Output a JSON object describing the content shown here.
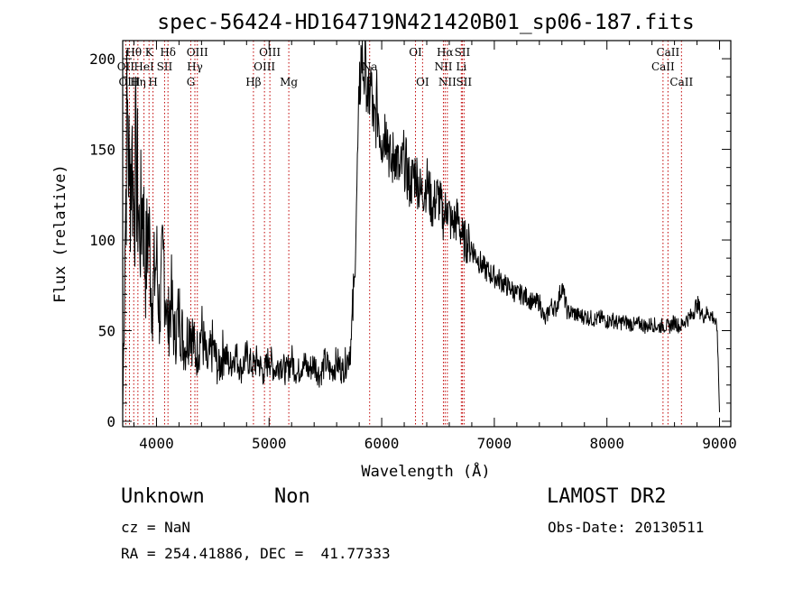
{
  "chart_data": {
    "type": "line",
    "title": "spec-56424-HD164719N421420B01_sp06-187.fits",
    "xlabel": "Wavelength (Å)",
    "ylabel": "Flux (relative)",
    "xlim": [
      3700,
      9100
    ],
    "ylim": [
      -3,
      210
    ],
    "x_ticks": [
      4000,
      5000,
      6000,
      7000,
      8000,
      9000
    ],
    "y_ticks": [
      0,
      50,
      100,
      150,
      200
    ],
    "grid": false,
    "series": [
      {
        "color": "#000000",
        "points": [
          [
            3700,
            5
          ],
          [
            3720,
            95
          ],
          [
            3740,
            175
          ],
          [
            3760,
            130
          ],
          [
            3780,
            150
          ],
          [
            3800,
            120
          ],
          [
            3820,
            145
          ],
          [
            3850,
            100
          ],
          [
            3880,
            125
          ],
          [
            3900,
            80
          ],
          [
            3930,
            110
          ],
          [
            3960,
            65
          ],
          [
            4000,
            90
          ],
          [
            4030,
            55
          ],
          [
            4060,
            95
          ],
          [
            4100,
            50
          ],
          [
            4130,
            70
          ],
          [
            4160,
            45
          ],
          [
            4200,
            60
          ],
          [
            4250,
            40
          ],
          [
            4300,
            55
          ],
          [
            4350,
            35
          ],
          [
            4400,
            50
          ],
          [
            4450,
            30
          ],
          [
            4500,
            42
          ],
          [
            4550,
            28
          ],
          [
            4600,
            40
          ],
          [
            4650,
            30
          ],
          [
            4700,
            38
          ],
          [
            4750,
            28
          ],
          [
            4800,
            36
          ],
          [
            4850,
            30
          ],
          [
            4900,
            34
          ],
          [
            4950,
            26
          ],
          [
            5000,
            35
          ],
          [
            5050,
            28
          ],
          [
            5100,
            33
          ],
          [
            5150,
            27
          ],
          [
            5200,
            34
          ],
          [
            5250,
            26
          ],
          [
            5300,
            33
          ],
          [
            5350,
            28
          ],
          [
            5400,
            32
          ],
          [
            5450,
            25
          ],
          [
            5500,
            33
          ],
          [
            5550,
            27
          ],
          [
            5600,
            33
          ],
          [
            5650,
            28
          ],
          [
            5700,
            35
          ],
          [
            5730,
            45
          ],
          [
            5760,
            80
          ],
          [
            5780,
            130
          ],
          [
            5800,
            175
          ],
          [
            5820,
            205
          ],
          [
            5840,
            190
          ],
          [
            5860,
            200
          ],
          [
            5880,
            170
          ],
          [
            5900,
            190
          ],
          [
            5930,
            160
          ],
          [
            5960,
            175
          ],
          [
            6000,
            155
          ],
          [
            6040,
            165
          ],
          [
            6080,
            140
          ],
          [
            6120,
            150
          ],
          [
            6160,
            135
          ],
          [
            6200,
            145
          ],
          [
            6250,
            130
          ],
          [
            6300,
            138
          ],
          [
            6350,
            125
          ],
          [
            6400,
            132
          ],
          [
            6450,
            118
          ],
          [
            6500,
            125
          ],
          [
            6550,
            112
          ],
          [
            6580,
            120
          ],
          [
            6620,
            108
          ],
          [
            6680,
            112
          ],
          [
            6720,
            100
          ],
          [
            6780,
            98
          ],
          [
            6850,
            90
          ],
          [
            6900,
            85
          ],
          [
            6950,
            82
          ],
          [
            7000,
            80
          ],
          [
            7050,
            78
          ],
          [
            7100,
            75
          ],
          [
            7150,
            73
          ],
          [
            7200,
            70
          ],
          [
            7250,
            70
          ],
          [
            7300,
            68
          ],
          [
            7350,
            65
          ],
          [
            7400,
            66
          ],
          [
            7450,
            55
          ],
          [
            7500,
            64
          ],
          [
            7550,
            62
          ],
          [
            7600,
            75
          ],
          [
            7650,
            60
          ],
          [
            7700,
            60
          ],
          [
            7750,
            58
          ],
          [
            7800,
            58
          ],
          [
            7850,
            57
          ],
          [
            7900,
            56
          ],
          [
            7950,
            57
          ],
          [
            8000,
            55
          ],
          [
            8050,
            56
          ],
          [
            8100,
            54
          ],
          [
            8150,
            55
          ],
          [
            8200,
            54
          ],
          [
            8250,
            53
          ],
          [
            8300,
            54
          ],
          [
            8350,
            52
          ],
          [
            8400,
            54
          ],
          [
            8450,
            52
          ],
          [
            8500,
            53
          ],
          [
            8550,
            52
          ],
          [
            8600,
            55
          ],
          [
            8650,
            52
          ],
          [
            8700,
            56
          ],
          [
            8750,
            58
          ],
          [
            8800,
            65
          ],
          [
            8850,
            58
          ],
          [
            8900,
            60
          ],
          [
            8950,
            57
          ],
          [
            8980,
            50
          ],
          [
            9000,
            5
          ]
        ]
      }
    ],
    "line_color": "#c00000",
    "spectral_lines": [
      {
        "label": "OII",
        "x": 3727,
        "row": 1
      },
      {
        "label": "Hθ",
        "x": 3798,
        "row": 0
      },
      {
        "label": "OIII",
        "x": 3760,
        "row": 2
      },
      {
        "label": "Hη",
        "x": 3835,
        "row": 2
      },
      {
        "label": "HeI",
        "x": 3889,
        "row": 1
      },
      {
        "label": "K",
        "x": 3934,
        "row": 0
      },
      {
        "label": "H",
        "x": 3969,
        "row": 2
      },
      {
        "label": "SII",
        "x": 4072,
        "row": 1
      },
      {
        "label": "Hδ",
        "x": 4102,
        "row": 0
      },
      {
        "label": "G",
        "x": 4305,
        "row": 2
      },
      {
        "label": "Hγ",
        "x": 4341,
        "row": 1
      },
      {
        "label": "OIII",
        "x": 4363,
        "row": 0
      },
      {
        "label": "Hβ",
        "x": 4861,
        "row": 2
      },
      {
        "label": "OIII",
        "x": 4959,
        "row": 1
      },
      {
        "label": "OIII",
        "x": 5007,
        "row": 0
      },
      {
        "label": "Mg",
        "x": 5175,
        "row": 2
      },
      {
        "label": "Na",
        "x": 5893,
        "row": 1
      },
      {
        "label": "OI",
        "x": 6300,
        "row": 0
      },
      {
        "label": "OI",
        "x": 6363,
        "row": 2
      },
      {
        "label": "NII",
        "x": 6548,
        "row": 1
      },
      {
        "label": "Hα",
        "x": 6563,
        "row": 0
      },
      {
        "label": "NII",
        "x": 6583,
        "row": 2
      },
      {
        "label": "Li",
        "x": 6707,
        "row": 1
      },
      {
        "label": "SII",
        "x": 6716,
        "row": 0
      },
      {
        "label": "SII",
        "x": 6731,
        "row": 2
      },
      {
        "label": "CaII",
        "x": 8498,
        "row": 1
      },
      {
        "label": "CaII",
        "x": 8542,
        "row": 0
      },
      {
        "label": "CaII",
        "x": 8662,
        "row": 2
      }
    ]
  },
  "info": {
    "class_label": "Unknown",
    "subclass_label": "Non",
    "survey": "LAMOST DR2",
    "cz": "cz = NaN",
    "obs_date": "Obs-Date: 20130511",
    "coords": "RA = 254.41886, DEC =  41.77333"
  }
}
